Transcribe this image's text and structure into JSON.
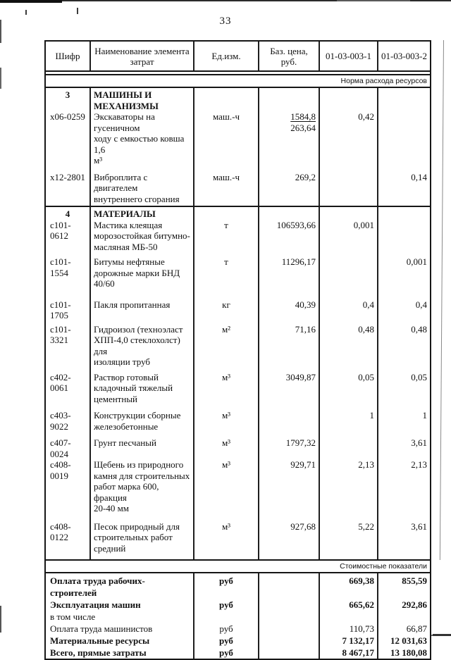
{
  "page_number": "33",
  "bands": {
    "resources": "Норма расхода ресурсов",
    "costs": "Стоимостные показатели"
  },
  "columns": [
    "Шифр",
    "Наименование элемента\nзатрат",
    "Ед.изм.",
    "Баз. цена,\nруб.",
    "01-03-003-1",
    "01-03-003-2"
  ],
  "sections": [
    {
      "num": "3",
      "title": "МАШИНЫ И\nМЕХАНИЗМЫ",
      "rows": [
        {
          "code": "х06-0259",
          "name": "Экскаваторы на гусеничном\nходу с емкостью ковша 1,6\nм³",
          "unit": "маш.-ч",
          "price": "1584,8",
          "price_underline": true,
          "price2": "263,64",
          "v1": "0,42",
          "v2": "",
          "gap": 8
        },
        {
          "code": "х12-2801",
          "name": "Виброплита с двигателем\nвнутреннего сгорания",
          "unit": "маш.-ч",
          "price": "269,2",
          "v1": "",
          "v2": "0,14",
          "gap": 2
        }
      ]
    },
    {
      "num": "4",
      "title": "МАТЕРИАЛЫ",
      "rows": [
        {
          "code": "с101-0612",
          "name": "Мастика клеящая\nморозостойкая битумно-\nмасляная МБ-50",
          "unit": "т",
          "price": "106593,66",
          "v1": "0,001",
          "v2": "",
          "gap": 6
        },
        {
          "code": "с101-1554",
          "name": "Битумы нефтяные\nдорожные марки БНД 40/60",
          "unit": "т",
          "price": "11296,17",
          "v1": "",
          "v2": "0,001",
          "gap": 14
        },
        {
          "code": "с101-1705",
          "name": "Пакля пропитанная",
          "unit": "кг",
          "price": "40,39",
          "v1": "0,4",
          "v2": "0,4",
          "gap": 4
        },
        {
          "code": "с101-3321",
          "name": "Гидроизол (техноэласт\nХПП-4,0 стеклохолст) для\nизоляции труб",
          "unit": "м²",
          "price": "71,16",
          "v1": "0,48",
          "v2": "0,48",
          "gap": 6
        },
        {
          "code": "с402-0061",
          "name": "Раствор готовый\nкладочный тяжелый\nцементный",
          "unit": "м³",
          "price": "3049,87",
          "v1": "0,05",
          "v2": "0,05",
          "gap": 8
        },
        {
          "code": "с403-9022",
          "name": "Конструкции сборные\nжелезобетонные",
          "unit": "м³",
          "price": "",
          "v1": "1",
          "v2": "1",
          "gap": 8
        },
        {
          "code": "с407-0024",
          "name": "Грунт песчаный",
          "unit": "м³",
          "price": "1797,32",
          "v1": "",
          "v2": "3,61",
          "gap": 0
        },
        {
          "code": "с408-0019",
          "name": "Щебень из природного\nкамня для строительных\nработ марка 600, фракция\n20-40 мм",
          "unit": "м³",
          "price": "929,71",
          "v1": "2,13",
          "v2": "2,13",
          "gap": 10
        },
        {
          "code": "с408-0122",
          "name": "Песок природный для\nстроительных работ\nсредний",
          "unit": "м³",
          "price": "927,68",
          "v1": "5,22",
          "v2": "3,61",
          "gap": 8
        }
      ]
    }
  ],
  "summary": [
    {
      "label": "Оплата труда рабочих-строителей",
      "unit": "руб",
      "v1": "669,38",
      "v2": "855,59",
      "bold": true
    },
    {
      "label": "Эксплуатация машин",
      "unit": "руб",
      "v1": "665,62",
      "v2": "292,86",
      "bold": true
    },
    {
      "label": "в том числе",
      "unit": "",
      "v1": "",
      "v2": "",
      "bold": false
    },
    {
      "label": "Оплата труда машинистов",
      "unit": "руб",
      "v1": "110,73",
      "v2": "66,87",
      "bold": false
    },
    {
      "label": "Материальные ресурсы",
      "unit": "руб",
      "v1": "7 132,17",
      "v2": "12 031,63",
      "bold": true
    },
    {
      "label": "Всего, прямые затраты",
      "unit": "руб",
      "v1": "8 467,17",
      "v2": "13 180,08",
      "bold": true
    }
  ]
}
